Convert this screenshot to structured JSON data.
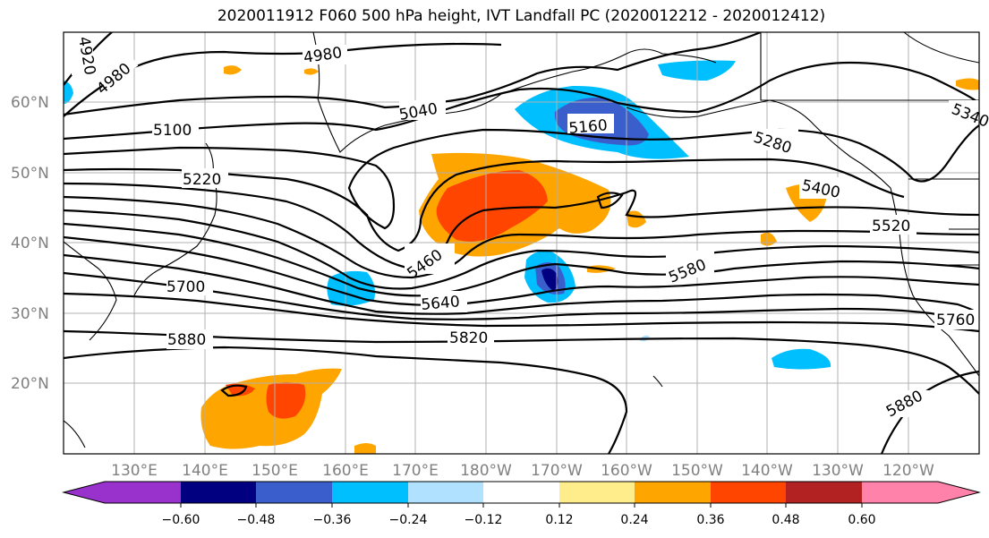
{
  "title": "2020011912 F060 500 hPa height, IVT Landfall PC (2020012212 - 2020012412)",
  "map": {
    "lon_labels": [
      "130°E",
      "140°E",
      "150°E",
      "160°E",
      "170°E",
      "180°W",
      "170°W",
      "160°W",
      "150°W",
      "140°W",
      "130°W",
      "120°W"
    ],
    "lat_labels": [
      "60°N",
      "50°N",
      "40°N",
      "30°N",
      "20°N"
    ],
    "contour_labels": [
      "4920",
      "4980",
      "4980",
      "5040",
      "5100",
      "5160",
      "5220",
      "5280",
      "5340",
      "5400",
      "5460",
      "5520",
      "5580",
      "5640",
      "5700",
      "5760",
      "5820",
      "5880",
      "5880"
    ]
  },
  "colorbar": {
    "ticks": [
      "−0.60",
      "−0.48",
      "−0.36",
      "−0.24",
      "−0.12",
      "0.12",
      "0.24",
      "0.36",
      "0.48",
      "0.60"
    ],
    "colors": [
      "#9932cc",
      "#000080",
      "#3a5fcd",
      "#00bfff",
      "#b0e2ff",
      "#ffffff",
      "#ffec8b",
      "#ffa500",
      "#ff4500",
      "#b22222",
      "#ff82ab"
    ]
  }
}
